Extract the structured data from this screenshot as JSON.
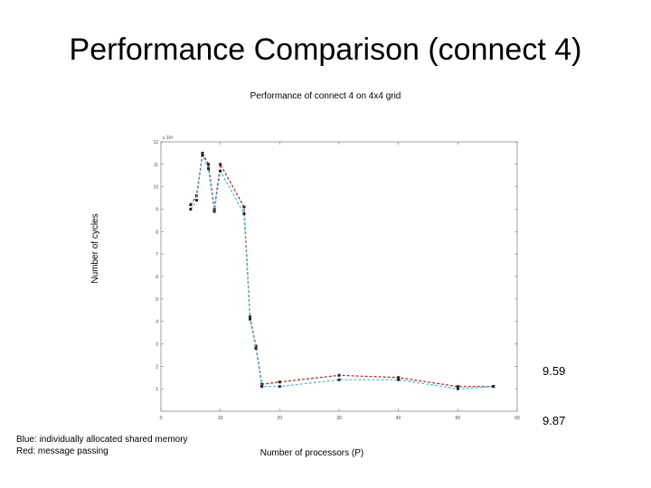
{
  "slide": {
    "title": "Performance Comparison (connect 4)",
    "legend_note": [
      "Blue: individually allocated shared memory",
      "Red: message passing"
    ],
    "annotations": [
      "9.59",
      "9.87"
    ]
  },
  "chart_data": {
    "type": "line",
    "title": "Performance of connect 4 on 4x4 grid",
    "xlabel": "Number of processors (P)",
    "ylabel": "Number of cycles",
    "exponent_label": "x 10⁶",
    "xlim": [
      0,
      60
    ],
    "ylim": [
      0,
      12
    ],
    "xticks": [
      0,
      10,
      20,
      30,
      40,
      50,
      60
    ],
    "yticks": [
      1,
      2,
      3,
      4,
      5,
      6,
      7,
      8,
      9,
      10,
      11,
      12
    ],
    "grid": false,
    "series": [
      {
        "name": "Red: message passing",
        "color": "#b22222",
        "x": [
          5,
          6,
          7,
          8,
          9,
          10,
          14,
          15,
          16,
          17,
          20,
          30,
          40,
          50,
          56
        ],
        "y": [
          9.2,
          9.6,
          11.5,
          11.0,
          9.0,
          11.0,
          9.1,
          4.2,
          2.9,
          1.2,
          1.3,
          1.6,
          1.5,
          1.1,
          1.1
        ]
      },
      {
        "name": "Blue: individually allocated shared memory",
        "color": "#3cc0d8",
        "x": [
          5,
          6,
          7,
          8,
          9,
          10,
          14,
          15,
          16,
          17,
          20,
          30,
          40,
          50,
          56
        ],
        "y": [
          9.0,
          9.4,
          11.4,
          10.8,
          8.9,
          10.7,
          8.8,
          4.1,
          2.8,
          1.1,
          1.1,
          1.4,
          1.4,
          1.0,
          1.1
        ]
      }
    ]
  }
}
